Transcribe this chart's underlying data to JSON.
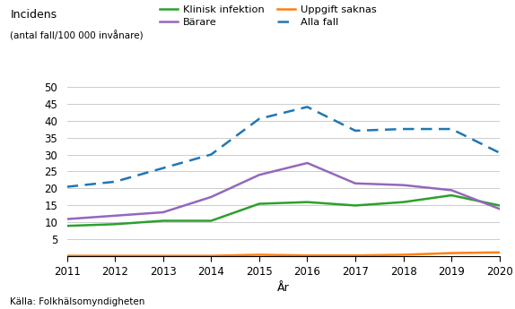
{
  "years": [
    2011,
    2012,
    2013,
    2014,
    2015,
    2016,
    2017,
    2018,
    2019,
    2020
  ],
  "klinisk_infektion": [
    9,
    9.5,
    10.5,
    10.5,
    15.5,
    16,
    15,
    16,
    18,
    15
  ],
  "barare": [
    11,
    12,
    13,
    17.5,
    24,
    27.5,
    21.5,
    21,
    19.5,
    14
  ],
  "uppgift_saknas": [
    0.2,
    0.2,
    0.2,
    0.2,
    0.5,
    0.3,
    0.3,
    0.5,
    1.0,
    1.2
  ],
  "alla_fall": [
    20.5,
    22,
    26,
    30,
    40.5,
    44,
    37,
    37.5,
    37.5,
    30.5
  ],
  "color_klinisk": "#2ca02c",
  "color_barare": "#9467bd",
  "color_uppgift": "#ff7f0e",
  "color_alla": "#1f77b4",
  "xlabel": "År",
  "source": "Källa: Folkhälsomyndigheten",
  "ylim": [
    0,
    50
  ],
  "yticks": [
    0,
    5,
    10,
    15,
    20,
    25,
    30,
    35,
    40,
    45,
    50
  ],
  "legend_klinisk": "Klinisk infektion",
  "legend_barare": "Bärare",
  "legend_uppgift": "Uppgift saknas",
  "legend_alla": "Alla fall",
  "title_line1": "Incidens",
  "title_line2": "(antal fall/100 000 invånare)"
}
